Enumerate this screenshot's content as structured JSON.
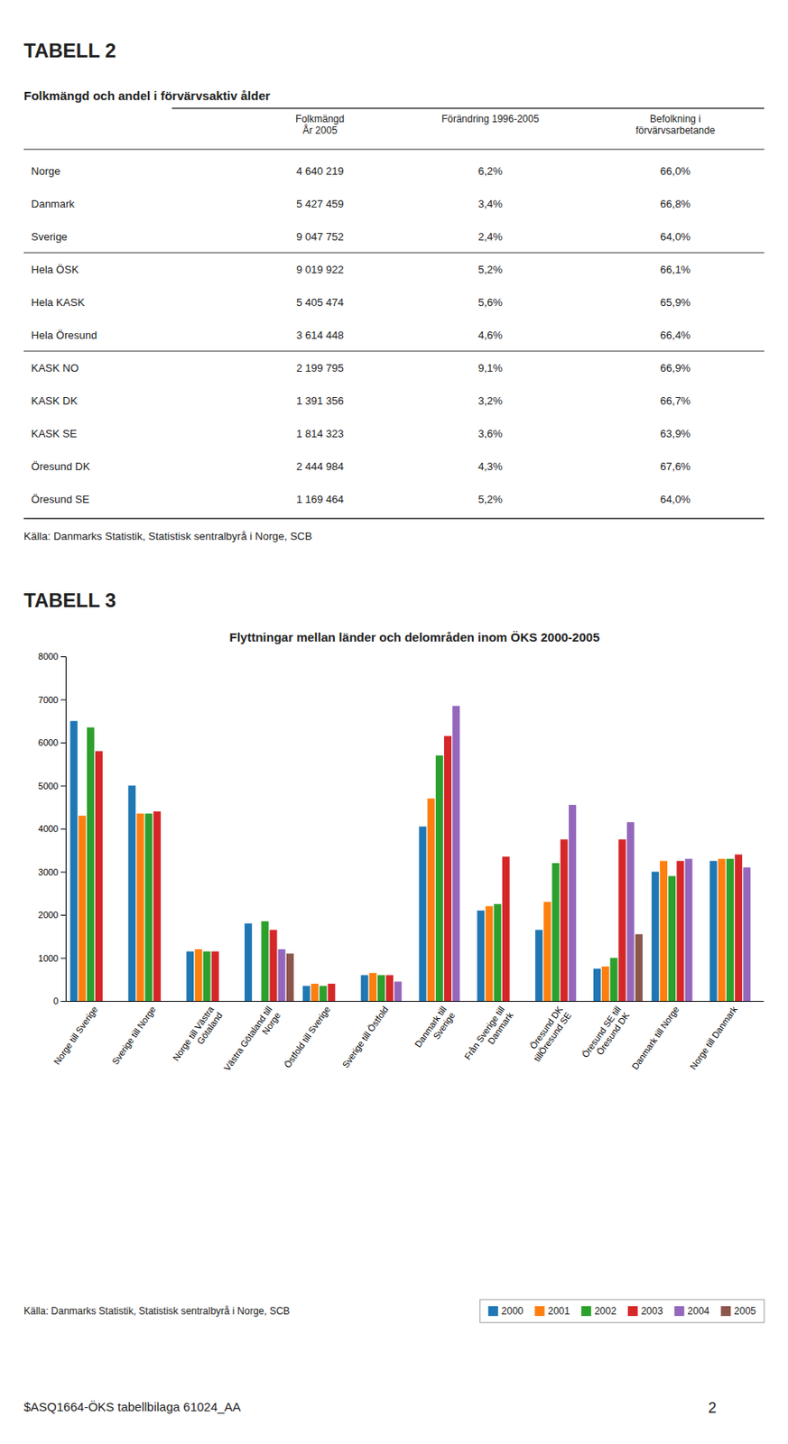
{
  "page": {
    "heading": "TABELL 2",
    "heading2": "TABELL 3",
    "footer": "$ASQ1664-ÖKS tabellbilaga 61024_AA",
    "page_number": "2"
  },
  "table": {
    "title": "Folkmängd och andel i förvärvsaktiv ålder",
    "columns": [
      "Folkmängd\nÅr 2005",
      "Förändring 1996-2005",
      "Befolkning i\nförvärvsarbetande"
    ],
    "rows": [
      [
        "Norge",
        "4 640 219",
        "6,2%",
        "66,0%"
      ],
      [
        "Danmark",
        "5 427 459",
        "3,4%",
        "66,8%"
      ],
      [
        "Sverige",
        "9 047 752",
        "2,4%",
        "64,0%"
      ],
      [
        "Hela ÖSK",
        "9 019 922",
        "5,2%",
        "66,1%"
      ],
      [
        "Hela KASK",
        "5 405 474",
        "5,6%",
        "65,9%"
      ],
      [
        "Hela Öresund",
        "3 614 448",
        "4,6%",
        "66,4%"
      ],
      [
        "KASK NO",
        "2 199 795",
        "9,1%",
        "66,9%"
      ],
      [
        "KASK DK",
        "1 391 356",
        "3,2%",
        "66,7%"
      ],
      [
        "KASK SE",
        "1 814 323",
        "3,6%",
        "63,9%"
      ],
      [
        "Öresund DK",
        "2 444 984",
        "4,3%",
        "67,6%"
      ],
      [
        "Öresund SE",
        "1 169 464",
        "5,2%",
        "64,0%"
      ]
    ],
    "source": "Källa: Danmarks Statistik, Statistisk sentralbyrå i Norge, SCB"
  },
  "chart_data": {
    "type": "bar",
    "title": "Flyttningar mellan länder och delområden inom ÖKS 2000-2005",
    "categories": [
      "Norge till Sverige",
      "Sverige till Norge",
      "Norge till Västra\nGötaland",
      "Västra Götaland till\nNorge",
      "Östfold till Sverige",
      "Sverige till Östfold",
      "Danmark till\nSverige",
      "Från Sverige till\nDanmark",
      "Öresund DK\ntillÖresund SE",
      "Öresund SE till\nÖresund DK",
      "Danmark till Norge",
      "Norge till Danmark"
    ],
    "series": [
      {
        "name": "2000",
        "values": [
          6500,
          5000,
          1150,
          1800,
          350,
          600,
          4050,
          2100,
          1650,
          750,
          3000,
          3250
        ]
      },
      {
        "name": "2001",
        "values": [
          4300,
          4350,
          1200,
          0,
          400,
          650,
          4700,
          2200,
          2300,
          800,
          3250,
          3300
        ]
      },
      {
        "name": "2002",
        "values": [
          6350,
          4350,
          1150,
          1850,
          350,
          600,
          5700,
          2250,
          3200,
          1000,
          2900,
          3300
        ]
      },
      {
        "name": "2003",
        "values": [
          5800,
          4400,
          1150,
          1650,
          400,
          600,
          6150,
          3350,
          3750,
          3750,
          3250,
          3400
        ]
      },
      {
        "name": "2004",
        "values": [
          0,
          0,
          0,
          1200,
          0,
          450,
          6850,
          0,
          4550,
          4150,
          3300,
          3100
        ]
      },
      {
        "name": "2005",
        "values": [
          0,
          0,
          0,
          1100,
          0,
          0,
          0,
          0,
          0,
          1550,
          0,
          0
        ]
      }
    ],
    "ylim": [
      0,
      8000
    ],
    "yticks": [
      0,
      1000,
      2000,
      3000,
      4000,
      5000,
      6000,
      7000,
      8000
    ],
    "grid": false,
    "legend": "bottom",
    "source": "Källa: Danmarks Statistik, Statistisk sentralbyrå i Norge, SCB"
  }
}
